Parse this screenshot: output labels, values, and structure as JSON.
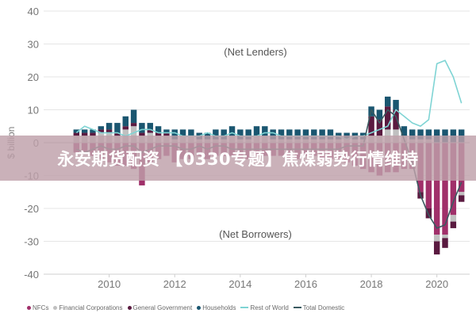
{
  "banner_text": "永安期货配资 【0330专题】焦煤弱势行情维持",
  "chart_data": {
    "type": "bar",
    "ylabel": "$ billion",
    "ylim": [
      -40,
      40
    ],
    "yticks": [
      -40,
      -30,
      -20,
      -10,
      0,
      10,
      20,
      30,
      40
    ],
    "xlim": [
      2008,
      2021
    ],
    "xticks": [
      2010,
      2012,
      2014,
      2016,
      2018,
      2020
    ],
    "grid": true,
    "legend_position": "bottom",
    "annotations": [
      "(Net Lenders)",
      "(Net Borrowers)"
    ],
    "x": [
      2009.0,
      2009.25,
      2009.5,
      2009.75,
      2010.0,
      2010.25,
      2010.5,
      2010.75,
      2011.0,
      2011.25,
      2011.5,
      2011.75,
      2012.0,
      2012.25,
      2012.5,
      2012.75,
      2013.0,
      2013.25,
      2013.5,
      2013.75,
      2014.0,
      2014.25,
      2014.5,
      2014.75,
      2015.0,
      2015.25,
      2015.5,
      2015.75,
      2016.0,
      2016.25,
      2016.5,
      2016.75,
      2017.0,
      2017.25,
      2017.5,
      2017.75,
      2018.0,
      2018.25,
      2018.5,
      2018.75,
      2019.0,
      2019.25,
      2019.5,
      2019.75,
      2020.0,
      2020.25,
      2020.5,
      2020.75
    ],
    "series": [
      {
        "name": "NFCs",
        "color": "#a0306a",
        "kind": "bar",
        "values": [
          -3,
          -3,
          -4,
          -5,
          -6,
          -7,
          -7,
          -8,
          -13,
          -6,
          -5,
          -4,
          -6,
          -5,
          -5,
          -4,
          -5,
          -4,
          -4,
          -4,
          -5,
          -5,
          -4,
          -4,
          -4,
          -4,
          -5,
          -5,
          -4,
          -4,
          -5,
          -5,
          -5,
          -6,
          -7,
          -8,
          -9,
          -10,
          -9,
          -9,
          -8,
          -8,
          -15,
          -20,
          -28,
          -28,
          -22,
          -15
        ]
      },
      {
        "name": "Financial Corporations",
        "color": "#c0c0c0",
        "kind": "bar",
        "values": [
          2,
          2,
          2,
          3,
          3,
          2,
          4,
          5,
          2,
          3,
          2,
          2,
          1,
          2,
          2,
          1,
          1,
          1,
          1,
          2,
          1,
          1,
          2,
          2,
          1,
          1,
          1,
          1,
          1,
          1,
          1,
          1,
          1,
          1,
          1,
          1,
          2,
          2,
          4,
          4,
          2,
          1,
          1,
          1,
          -2,
          -1,
          -2,
          -1
        ]
      },
      {
        "name": "General Government",
        "color": "#5a1a40",
        "kind": "bar",
        "values": [
          1,
          1,
          1,
          1,
          1,
          1,
          1,
          1,
          1,
          1,
          1,
          1,
          0,
          0,
          0,
          0,
          0,
          0,
          0,
          0,
          0,
          0,
          0,
          0,
          0,
          0,
          0,
          0,
          0,
          0,
          0,
          0,
          0,
          0,
          0,
          0,
          6,
          5,
          7,
          6,
          0,
          0,
          -2,
          -3,
          -4,
          -3,
          -2,
          -2
        ]
      },
      {
        "name": "Households",
        "color": "#1a5670",
        "kind": "bar",
        "values": [
          1,
          1,
          1,
          1,
          2,
          3,
          3,
          4,
          3,
          2,
          2,
          1,
          3,
          2,
          2,
          2,
          2,
          3,
          3,
          3,
          3,
          3,
          3,
          3,
          3,
          3,
          3,
          3,
          3,
          3,
          3,
          3,
          2,
          2,
          2,
          2,
          3,
          3,
          3,
          3,
          3,
          3,
          3,
          3,
          4,
          4,
          4,
          4
        ]
      },
      {
        "name": "Rest of World",
        "color": "#7fd4d4",
        "kind": "line",
        "values": [
          3,
          5,
          4,
          3,
          3,
          3,
          2,
          3,
          4,
          4,
          3,
          3,
          3,
          2,
          2,
          2,
          3,
          2,
          2,
          3,
          2,
          2,
          2,
          3,
          3,
          2,
          2,
          2,
          2,
          2,
          2,
          2,
          2,
          1,
          2,
          2,
          3,
          4,
          5,
          10,
          8,
          6,
          5,
          7,
          24,
          25,
          20,
          12
        ]
      },
      {
        "name": "Total Domestic",
        "color": "#3a5a60",
        "kind": "line",
        "values": [
          -2,
          -3,
          -2,
          -1,
          -2,
          -2,
          -1,
          -1,
          -3,
          -2,
          -1,
          -1,
          -1,
          -2,
          -2,
          -1,
          -2,
          -1,
          -1,
          -2,
          -2,
          -2,
          -2,
          -2,
          -2,
          -2,
          -2,
          -2,
          -2,
          -2,
          -2,
          -2,
          -2,
          -1,
          -1,
          -1,
          10,
          6,
          10,
          8,
          1,
          -6,
          -16,
          -22,
          -26,
          -25,
          -18,
          -12
        ]
      }
    ]
  }
}
